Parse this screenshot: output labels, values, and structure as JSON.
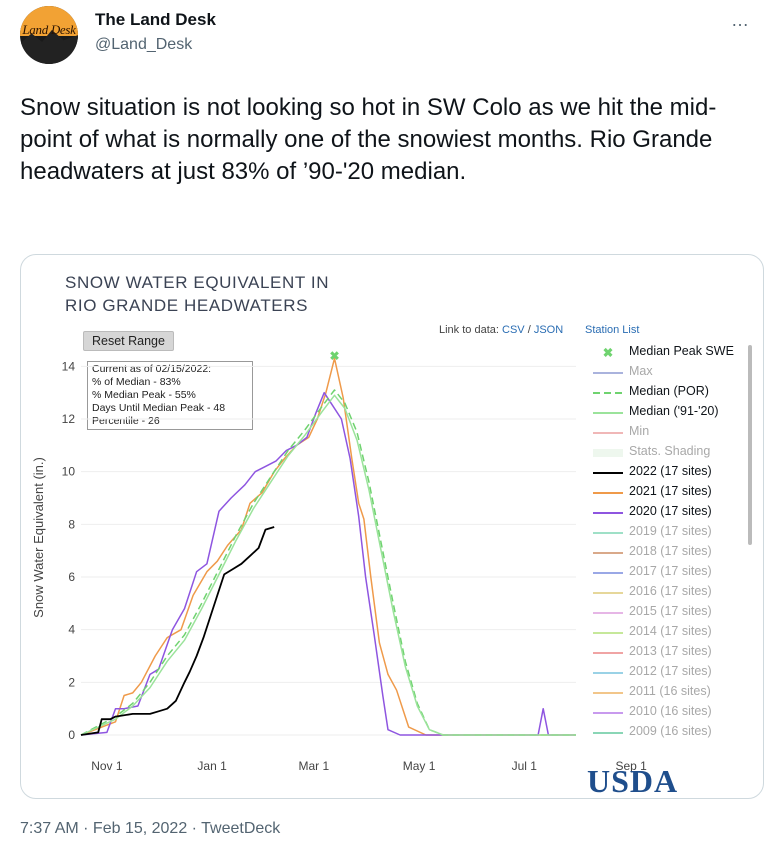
{
  "author": {
    "avatar_text": "Land Desk",
    "name": "The Land Desk",
    "handle": "@Land_Desk"
  },
  "more_icon": "…",
  "tweet_text": "Snow situation is not looking so hot in SW Colo as we hit the mid-point of what is normally one of the snowiest months. Rio Grande headwaters at just 83% of ’90-'20 median.",
  "chart": {
    "title": "SNOW WATER EQUIVALENT IN\nRIO GRANDE HEADWATERS",
    "reset_label": "Reset Range",
    "info_lines": [
      "Current as of 02/15/2022:",
      "% of Median - 83%",
      "% Median Peak - 55%",
      "Days Until Median Peak - 48",
      "Percentile - 26"
    ],
    "link_prefix": "Link to data:",
    "csv": "CSV",
    "sep": "/",
    "json": "JSON",
    "station_list": "Station List",
    "logo": "USDA",
    "legend": [
      {
        "label": "Median Peak SWE",
        "color": "#6fd36f",
        "marker": "✖",
        "dim": false
      },
      {
        "label": "Max",
        "color": "#aab3dd",
        "dim": true
      },
      {
        "label": "Median (POR)",
        "color": "#6fd36f",
        "dash": true,
        "dim": false
      },
      {
        "label": "Median ('91-'20)",
        "color": "#9be39b",
        "dim": false
      },
      {
        "label": "Min",
        "color": "#f0b7b7",
        "dim": true
      },
      {
        "label": "Stats. Shading",
        "color": "#eef7ee",
        "dim": true
      },
      {
        "label": "2022 (17 sites)",
        "color": "#000000",
        "dim": false
      },
      {
        "label": "2021 (17 sites)",
        "color": "#ef9a4a",
        "dim": false
      },
      {
        "label": "2020 (17 sites)",
        "color": "#8e55e0",
        "dim": false
      },
      {
        "label": "2019 (17 sites)",
        "color": "#9fe0c7",
        "dim": true
      },
      {
        "label": "2018 (17 sites)",
        "color": "#d9a98a",
        "dim": true
      },
      {
        "label": "2017 (17 sites)",
        "color": "#9aa8e6",
        "dim": true
      },
      {
        "label": "2016 (17 sites)",
        "color": "#e6d79a",
        "dim": true
      },
      {
        "label": "2015 (17 sites)",
        "color": "#e6b6e6",
        "dim": true
      },
      {
        "label": "2014 (17 sites)",
        "color": "#c6e89a",
        "dim": true
      },
      {
        "label": "2013 (17 sites)",
        "color": "#f0a4a4",
        "dim": true
      },
      {
        "label": "2012 (17 sites)",
        "color": "#9ad2e6",
        "dim": true
      },
      {
        "label": "2011 (16 sites)",
        "color": "#f2c68a",
        "dim": true
      },
      {
        "label": "2010 (16 sites)",
        "color": "#c89aee",
        "dim": true
      },
      {
        "label": "2009 (16 sites)",
        "color": "#8ad6b6",
        "dim": true
      }
    ]
  },
  "chart_data": {
    "type": "line",
    "ylabel": "Snow Water Equivalent (in.)",
    "ylim": [
      0,
      15
    ],
    "yticks": [
      0,
      2,
      4,
      6,
      8,
      10,
      12,
      14
    ],
    "xticks": [
      "Nov 1",
      "Jan 1",
      "Mar 1",
      "May 1",
      "Jul 1",
      "Sep 1"
    ],
    "series": [
      {
        "name": "2021 (17 sites)",
        "color": "#ef9a4a",
        "points": [
          [
            -15,
            0
          ],
          [
            5,
            0.5
          ],
          [
            10,
            1.5
          ],
          [
            15,
            1.6
          ],
          [
            20,
            2
          ],
          [
            28,
            3
          ],
          [
            35,
            3.7
          ],
          [
            43,
            4
          ],
          [
            50,
            5.3
          ],
          [
            58,
            6.2
          ],
          [
            64,
            6.6
          ],
          [
            70,
            7.2
          ],
          [
            78,
            7.8
          ],
          [
            83,
            8.8
          ],
          [
            90,
            9.2
          ],
          [
            97,
            10
          ],
          [
            103,
            10.5
          ],
          [
            110,
            11
          ],
          [
            117,
            11.3
          ],
          [
            122,
            12
          ],
          [
            127,
            13
          ],
          [
            132,
            14.3
          ],
          [
            137,
            12.8
          ],
          [
            142,
            10.5
          ],
          [
            146,
            8.8
          ],
          [
            149,
            8.2
          ],
          [
            153,
            6
          ],
          [
            158,
            3.5
          ],
          [
            163,
            2.3
          ],
          [
            168,
            1.7
          ],
          [
            175,
            0.3
          ],
          [
            185,
            0
          ],
          [
            272,
            0
          ]
        ]
      },
      {
        "name": "2020 (17 sites)",
        "color": "#8e55e0",
        "points": [
          [
            -15,
            0
          ],
          [
            0,
            0.1
          ],
          [
            5,
            1
          ],
          [
            10,
            1
          ],
          [
            18,
            1.1
          ],
          [
            25,
            2.3
          ],
          [
            30,
            2.5
          ],
          [
            38,
            4
          ],
          [
            45,
            4.8
          ],
          [
            52,
            6.2
          ],
          [
            58,
            6.5
          ],
          [
            65,
            8.5
          ],
          [
            72,
            9
          ],
          [
            80,
            9.5
          ],
          [
            86,
            10
          ],
          [
            92,
            10.2
          ],
          [
            98,
            10.4
          ],
          [
            104,
            10.8
          ],
          [
            110,
            11
          ],
          [
            116,
            11.3
          ],
          [
            121,
            12.2
          ],
          [
            126,
            13
          ],
          [
            131,
            12.5
          ],
          [
            136,
            12
          ],
          [
            141,
            10.5
          ],
          [
            146,
            8.3
          ],
          [
            150,
            6
          ],
          [
            155,
            3.8
          ],
          [
            160,
            1.5
          ],
          [
            163,
            0.2
          ],
          [
            170,
            0
          ],
          [
            250,
            0
          ],
          [
            253,
            1
          ],
          [
            256,
            0
          ],
          [
            272,
            0
          ]
        ]
      },
      {
        "name": "Median (POR)",
        "color": "#6fd36f",
        "dash": true,
        "points": [
          [
            -15,
            0
          ],
          [
            5,
            0.7
          ],
          [
            15,
            1.2
          ],
          [
            25,
            2
          ],
          [
            35,
            3
          ],
          [
            45,
            3.8
          ],
          [
            55,
            5
          ],
          [
            65,
            6.3
          ],
          [
            75,
            7.6
          ],
          [
            85,
            8.8
          ],
          [
            95,
            9.8
          ],
          [
            105,
            10.8
          ],
          [
            115,
            11.6
          ],
          [
            125,
            12.5
          ],
          [
            132,
            13.1
          ],
          [
            138,
            12.6
          ],
          [
            145,
            11.5
          ],
          [
            152,
            9.6
          ],
          [
            159,
            7.3
          ],
          [
            166,
            5
          ],
          [
            173,
            2.8
          ],
          [
            180,
            1.2
          ],
          [
            187,
            0.2
          ],
          [
            195,
            0
          ],
          [
            272,
            0
          ]
        ]
      },
      {
        "name": "Median ('91-'20)",
        "color": "#9be39b",
        "points": [
          [
            -15,
            0
          ],
          [
            5,
            0.6
          ],
          [
            15,
            1.1
          ],
          [
            25,
            1.8
          ],
          [
            35,
            2.8
          ],
          [
            45,
            3.6
          ],
          [
            55,
            4.8
          ],
          [
            65,
            6.1
          ],
          [
            75,
            7.4
          ],
          [
            85,
            8.6
          ],
          [
            95,
            9.6
          ],
          [
            105,
            10.6
          ],
          [
            115,
            11.4
          ],
          [
            125,
            12.3
          ],
          [
            132,
            12.9
          ],
          [
            138,
            12.4
          ],
          [
            145,
            11.2
          ],
          [
            152,
            9.3
          ],
          [
            159,
            7
          ],
          [
            166,
            4.7
          ],
          [
            173,
            2.6
          ],
          [
            180,
            1.1
          ],
          [
            187,
            0.2
          ],
          [
            195,
            0
          ],
          [
            272,
            0
          ]
        ]
      },
      {
        "name": "2022 (17 sites)",
        "color": "#000000",
        "width": 1.8,
        "points": [
          [
            -15,
            0
          ],
          [
            -5,
            0.1
          ],
          [
            -3,
            0.6
          ],
          [
            2,
            0.6
          ],
          [
            5,
            0.7
          ],
          [
            15,
            0.8
          ],
          [
            25,
            0.8
          ],
          [
            30,
            0.9
          ],
          [
            35,
            1
          ],
          [
            40,
            1.3
          ],
          [
            45,
            2
          ],
          [
            48,
            2.4
          ],
          [
            52,
            3
          ],
          [
            56,
            3.7
          ],
          [
            60,
            4.5
          ],
          [
            64,
            5.3
          ],
          [
            68,
            6.1
          ],
          [
            73,
            6.3
          ],
          [
            78,
            6.5
          ],
          [
            83,
            6.8
          ],
          [
            88,
            7.1
          ],
          [
            92,
            7.8
          ],
          [
            97,
            7.9
          ]
        ]
      }
    ],
    "median_peak": {
      "x": 132,
      "y": 14.4
    },
    "xlim": [
      -15,
      272
    ]
  }
}
